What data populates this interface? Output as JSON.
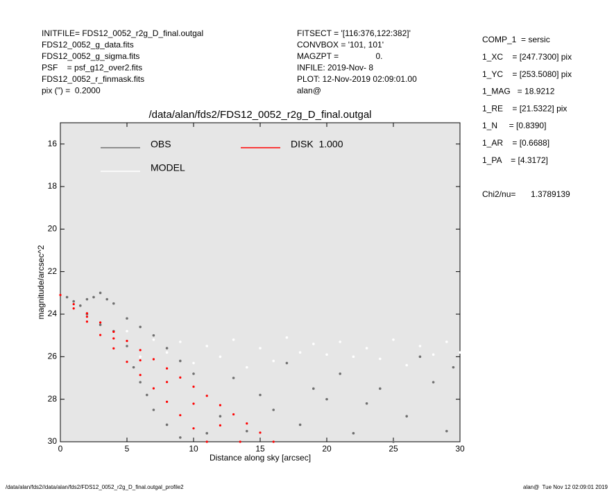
{
  "header_left": [
    "INITFILE= FDS12_0052_r2g_D_final.outgal",
    "FDS12_0052_g_data.fits",
    "FDS12_0052_g_sigma.fits",
    "PSF    = psf_g12_over2.fits",
    "FDS12_0052_r_finmask.fits",
    "pix (\") =  0.2000"
  ],
  "header_middle": [
    "FITSECT = '[116:376,122:382]'",
    "CONVBOX = '101, 101'",
    "MAGZPT =                0.",
    "INFILE: 2019-Nov- 8",
    "PLOT: 12-Nov-2019 02:09:01.00",
    "alan@"
  ],
  "header_right": [
    "COMP_1  = sersic",
    "1_XC    = [247.7300] pix",
    "1_YC    = [253.5080] pix",
    "1_MAG   = 18.9212",
    "1_RE    = [21.5322] pix",
    "1_N     = [0.8390]",
    "1_AR    = [0.6688]",
    "1_PA    = [4.3172]"
  ],
  "chi2_label": "Chi2/nu=",
  "chi2_value": "1.3789139",
  "footer_left": "/data/alan/fds2//data/alan/fds2/FDS12_0052_r2g_D_final.outgal_profile2",
  "footer_right": "alan@  Tue Nov 12 02:09:01 2019",
  "chart_data": {
    "type": "scatter",
    "title": "/data/alan/fds2/FDS12_0052_r2g_D_final.outgal",
    "x_label": "Distance along sky [arcsec]",
    "y_label": "magnitude/arcsec^2",
    "xlim": [
      0,
      30
    ],
    "ylim": [
      30,
      15
    ],
    "xticks": [
      0,
      5,
      10,
      15,
      20,
      25,
      30
    ],
    "yticks": [
      16,
      18,
      20,
      22,
      24,
      26,
      28,
      30
    ],
    "background": "#e6e6e6",
    "series": [
      {
        "name": "OBS",
        "color": "#707070",
        "x": [
          0.5,
          1,
          1.5,
          2,
          2.5,
          3,
          3.5,
          2,
          3,
          4,
          5,
          5.5,
          6,
          6.5,
          7,
          8,
          9,
          4,
          5,
          6,
          7,
          8,
          9,
          10,
          12,
          14,
          16,
          18,
          20,
          22,
          24,
          26,
          28,
          29.5,
          29,
          25,
          19,
          21,
          23,
          27,
          15,
          17,
          13,
          11
        ],
        "values": [
          23.2,
          23.4,
          23.6,
          23.3,
          23.2,
          23.0,
          23.3,
          24.0,
          24.5,
          24.8,
          25.5,
          26.5,
          27.2,
          27.8,
          28.5,
          29.2,
          29.8,
          23.5,
          24.2,
          24.6,
          25.0,
          25.6,
          26.2,
          26.8,
          28.8,
          29.5,
          28.5,
          29.2,
          28.0,
          29.6,
          27.5,
          28.8,
          27.2,
          26.5,
          29.5,
          30.0,
          27.5,
          26.8,
          28.2,
          26.0,
          27.8,
          26.3,
          27.0,
          29.6
        ]
      },
      {
        "name": "MODEL",
        "color": "#ffffff",
        "x": [
          5,
          7,
          9,
          11,
          13,
          15,
          17,
          19,
          21,
          23,
          25,
          27,
          29,
          12,
          16,
          20,
          24,
          28,
          6,
          8,
          10,
          14,
          18,
          22,
          26,
          30
        ],
        "values": [
          24.8,
          25.2,
          25.3,
          25.5,
          25.2,
          25.6,
          25.1,
          25.4,
          25.3,
          25.6,
          25.2,
          25.5,
          25.3,
          26.0,
          26.2,
          25.9,
          26.1,
          25.9,
          26.0,
          25.8,
          26.3,
          26.5,
          25.8,
          26.0,
          26.4,
          25.8
        ]
      },
      {
        "name": "DISK  1.000",
        "color": "#ff0000",
        "x": [
          0,
          1,
          2,
          3,
          4,
          5,
          6,
          7,
          8,
          9,
          10,
          11,
          1,
          2,
          3,
          4,
          5,
          6,
          7,
          8,
          9,
          10,
          11,
          12,
          13,
          14,
          15,
          16,
          2,
          4,
          6,
          8,
          10,
          12,
          13.5
        ],
        "values": [
          23.1,
          23.73,
          24.35,
          24.98,
          25.61,
          26.24,
          26.86,
          27.49,
          28.12,
          28.75,
          29.37,
          30.0,
          23.53,
          23.96,
          24.39,
          24.83,
          25.26,
          25.69,
          26.12,
          26.55,
          26.98,
          27.41,
          27.84,
          28.28,
          28.71,
          29.14,
          29.57,
          30.0,
          24.12,
          25.14,
          26.17,
          27.19,
          28.21,
          29.23,
          30.0
        ]
      }
    ]
  }
}
